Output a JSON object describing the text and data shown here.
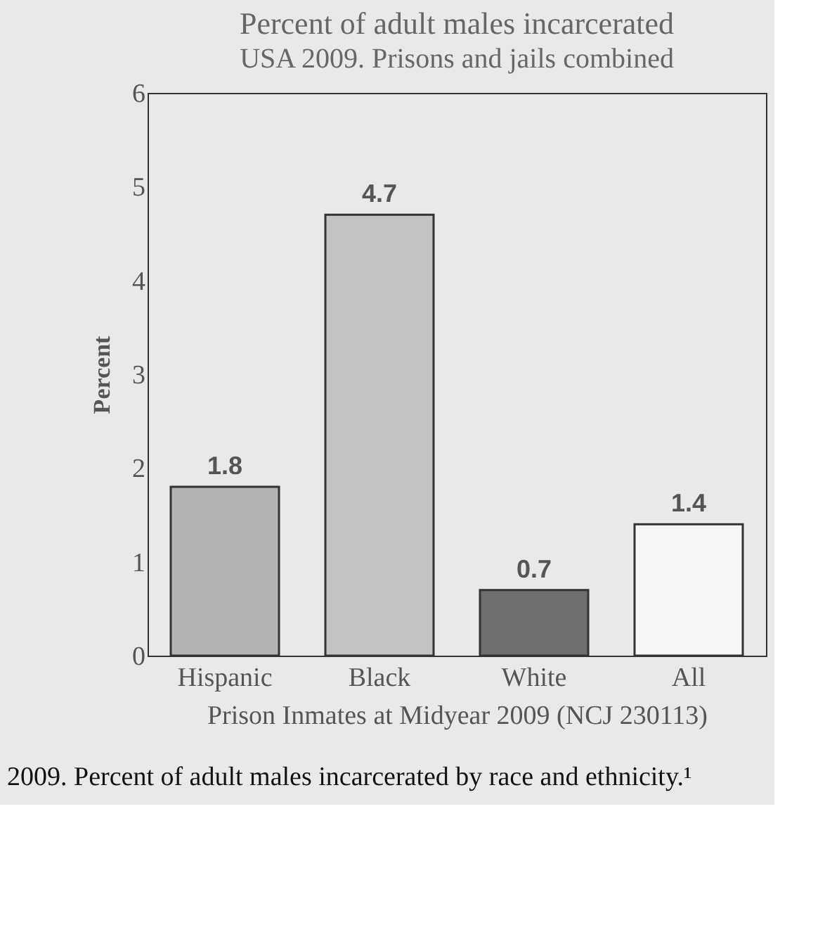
{
  "chart_data": {
    "type": "bar",
    "title": "Percent of adult males incarcerated",
    "subtitle": "USA 2009. Prisons and jails combined",
    "xlabel": "Prison Inmates at Midyear 2009 (NCJ 230113)",
    "ylabel": "Percent",
    "categories": [
      "Hispanic",
      "Black",
      "White",
      "All"
    ],
    "values": [
      1.8,
      4.7,
      0.7,
      1.4
    ],
    "colors": [
      "#b4b4b4",
      "#c4c4c4",
      "#6e6e6e",
      "#f6f6f6"
    ],
    "ylim": [
      0,
      6
    ],
    "yticks": [
      0,
      1,
      2,
      3,
      4,
      5,
      6
    ],
    "grid": false,
    "data_labels": true,
    "annotations": [
      "2009. Percent of adult males incarcerated by race and ethnicity.¹"
    ]
  }
}
